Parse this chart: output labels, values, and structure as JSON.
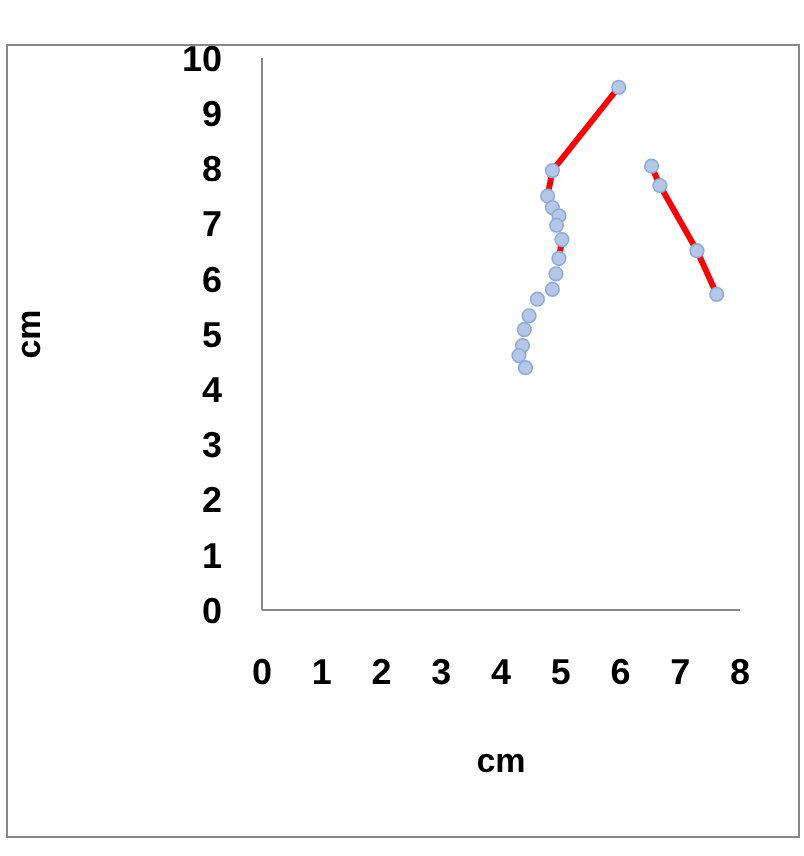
{
  "chart_data": {
    "type": "scatter",
    "xlabel": "cm",
    "ylabel": "cm",
    "xlim": [
      0,
      8
    ],
    "xticks": [
      0,
      1,
      2,
      3,
      4,
      5,
      6,
      7,
      8
    ],
    "ylim": [
      0,
      10
    ],
    "yticks": [
      0,
      1,
      2,
      3,
      4,
      5,
      6,
      7,
      8,
      9,
      10
    ],
    "grid": false,
    "legend": false,
    "series": [
      {
        "color": "#b4c7e7",
        "marker": "circle",
        "x": [
          5.97,
          4.86,
          4.78,
          4.86,
          4.97,
          4.93,
          5.02,
          4.97,
          4.92,
          4.86,
          4.61,
          4.47,
          4.39,
          4.36,
          4.3,
          4.41,
          6.52,
          6.66,
          7.28,
          7.61
        ],
        "values": [
          9.47,
          7.96,
          7.5,
          7.29,
          7.14,
          6.97,
          6.71,
          6.37,
          6.09,
          5.81,
          5.63,
          5.33,
          5.08,
          4.79,
          4.61,
          4.39,
          8.04,
          7.69,
          6.51,
          5.72
        ]
      },
      {
        "type": "line",
        "color": "#ff0000",
        "marker": "none",
        "x": [
          5.97,
          4.86,
          4.78
        ],
        "values": [
          9.47,
          7.96,
          7.5
        ]
      },
      {
        "type": "line",
        "color": "#ff0000",
        "marker": "none",
        "x": [
          5.02,
          4.97
        ],
        "values": [
          6.71,
          6.37
        ]
      },
      {
        "type": "line",
        "color": "#ff0000",
        "marker": "none",
        "x": [
          6.52,
          6.66,
          7.28,
          7.61
        ],
        "values": [
          8.04,
          7.69,
          6.51,
          5.72
        ]
      }
    ]
  }
}
